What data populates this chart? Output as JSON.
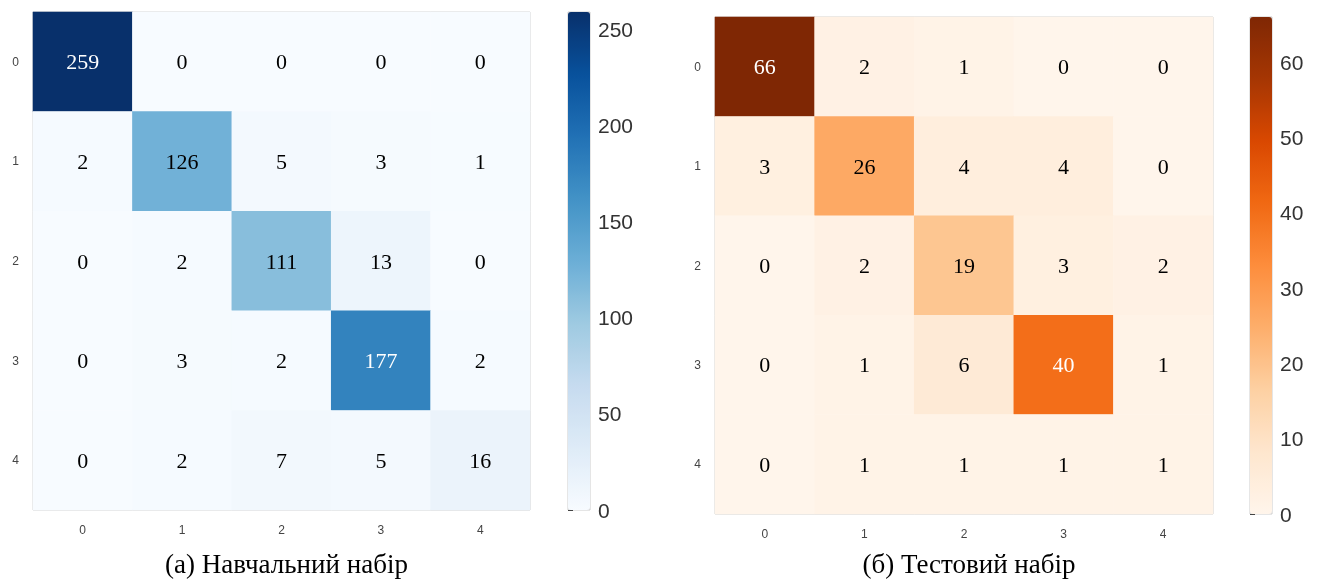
{
  "chart_data": [
    {
      "type": "heatmap",
      "title": "(а) Навчальний набір",
      "categories": [
        "0",
        "1",
        "2",
        "3",
        "4"
      ],
      "y_categories": [
        "0",
        "1",
        "2",
        "3",
        "4"
      ],
      "cells": [
        [
          259,
          0,
          0,
          0,
          0
        ],
        [
          2,
          126,
          5,
          3,
          1
        ],
        [
          0,
          2,
          111,
          13,
          0
        ],
        [
          0,
          3,
          2,
          177,
          2
        ],
        [
          0,
          2,
          7,
          5,
          16
        ]
      ],
      "clim": [
        0,
        259
      ],
      "cticks": [
        0,
        50,
        100,
        150,
        200,
        250
      ],
      "data_labels": true
    },
    {
      "type": "heatmap",
      "title": "(б) Тестовий набір",
      "categories": [
        "0",
        "1",
        "2",
        "3",
        "4"
      ],
      "y_categories": [
        "0",
        "1",
        "2",
        "3",
        "4"
      ],
      "cells": [
        [
          66,
          2,
          1,
          0,
          0
        ],
        [
          3,
          26,
          4,
          4,
          0
        ],
        [
          0,
          2,
          19,
          3,
          2
        ],
        [
          0,
          1,
          6,
          40,
          1
        ],
        [
          0,
          1,
          1,
          1,
          1
        ]
      ],
      "clim": [
        0,
        66
      ],
      "cticks": [
        0,
        10,
        20,
        30,
        40,
        50,
        60
      ],
      "data_labels": true
    }
  ]
}
